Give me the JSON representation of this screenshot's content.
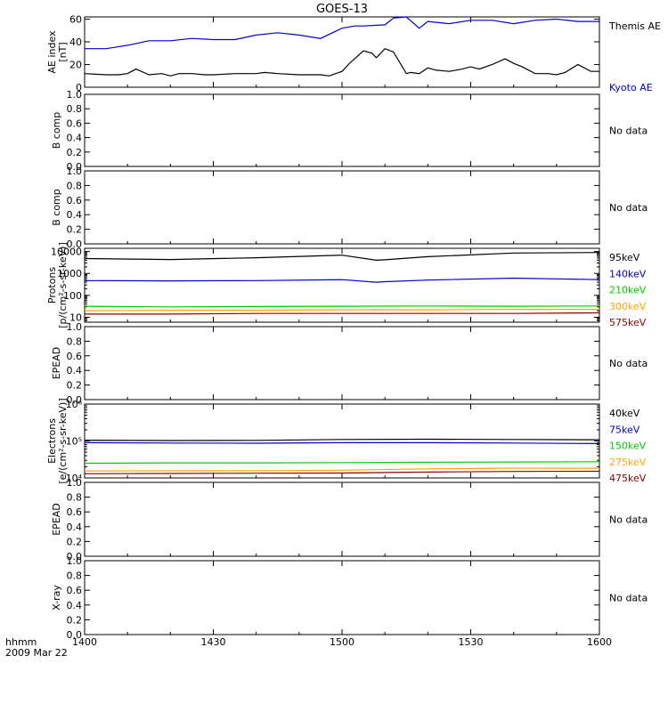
{
  "title": "GOES-13",
  "x_axis": {
    "row1_label": "hhmm",
    "row2_label": "2009 Mar 22",
    "ticks": [
      "1400",
      "1430",
      "1500",
      "1530",
      "1600"
    ],
    "range_minutes": [
      0,
      120
    ]
  },
  "no_data_text": "No data",
  "chart_data": [
    {
      "type": "line",
      "ylabel": "AE index",
      "ylabel2": "[nT]",
      "scale": "linear",
      "ylim": [
        0,
        62
      ],
      "yticks": [
        0,
        20,
        40,
        60
      ],
      "ytick_labels": [
        "0",
        "20",
        "40",
        "60"
      ],
      "series": [
        {
          "name": "Kyoto AE",
          "color": "#0000cc",
          "x": [
            0,
            5,
            10,
            15,
            20,
            25,
            30,
            35,
            40,
            45,
            50,
            55,
            60,
            63,
            65,
            70,
            72,
            75,
            78,
            80,
            85,
            90,
            95,
            100,
            105,
            110,
            115,
            120
          ],
          "y": [
            34,
            34,
            37,
            41,
            41,
            43,
            42,
            42,
            46,
            48,
            46,
            43,
            52,
            54,
            54,
            55,
            61,
            62,
            52,
            58,
            56,
            59,
            59,
            56,
            59,
            60,
            58,
            58
          ]
        },
        {
          "name": "Themis AE",
          "color": "#000000",
          "x": [
            0,
            5,
            8,
            10,
            12,
            15,
            18,
            20,
            22,
            25,
            28,
            30,
            35,
            40,
            42,
            45,
            50,
            55,
            57,
            60,
            62,
            65,
            67,
            68,
            70,
            72,
            75,
            76,
            78,
            80,
            82,
            85,
            88,
            90,
            92,
            95,
            98,
            100,
            102,
            105,
            108,
            110,
            112,
            115,
            118,
            120
          ],
          "y": [
            12,
            11,
            11,
            12,
            16,
            11,
            12,
            10,
            12,
            12,
            11,
            11,
            12,
            12,
            13,
            12,
            11,
            11,
            10,
            14,
            22,
            32,
            30,
            26,
            34,
            31,
            12,
            13,
            12,
            17,
            15,
            14,
            16,
            18,
            16,
            20,
            25,
            21,
            18,
            12,
            12,
            11,
            13,
            20,
            14,
            14
          ]
        }
      ]
    },
    {
      "type": "line",
      "ylabel": "B comp",
      "no_data": true,
      "scale": "linear",
      "ylim": [
        0,
        1
      ],
      "yticks": [
        0,
        0.2,
        0.4,
        0.6,
        0.8,
        1.0
      ],
      "ytick_labels": [
        "0.0",
        "0.2",
        "0.4",
        "0.6",
        "0.8",
        "1.0"
      ]
    },
    {
      "type": "line",
      "ylabel": "B comp",
      "no_data": true,
      "scale": "linear",
      "ylim": [
        0,
        1
      ],
      "yticks": [
        0,
        0.2,
        0.4,
        0.6,
        0.8,
        1.0
      ],
      "ytick_labels": [
        "0.0",
        "0.2",
        "0.4",
        "0.6",
        "0.8",
        "1.0"
      ]
    },
    {
      "type": "line",
      "ylabel": "Protons",
      "ylabel2": "[p/(cm²-s-sr-keV)]",
      "scale": "log",
      "ylim": [
        6,
        14000
      ],
      "yticks": [
        10,
        100,
        1000,
        10000
      ],
      "ytick_labels": [
        "10",
        "100",
        "1000",
        "10000"
      ],
      "series": [
        {
          "name": "575keV",
          "color": "#8b0000",
          "x": [
            0,
            20,
            40,
            60,
            80,
            100,
            120
          ],
          "y": [
            14,
            14,
            15,
            15,
            15,
            15,
            16
          ]
        },
        {
          "name": "300keV",
          "color": "#ffa500",
          "x": [
            0,
            20,
            40,
            60,
            80,
            100,
            120
          ],
          "y": [
            20,
            21,
            21,
            22,
            22,
            23,
            23
          ]
        },
        {
          "name": "210keV",
          "color": "#00cc00",
          "x": [
            0,
            20,
            40,
            60,
            80,
            100,
            120
          ],
          "y": [
            32,
            30,
            31,
            32,
            33,
            32,
            33
          ]
        },
        {
          "name": "140keV",
          "color": "#0000cc",
          "x": [
            0,
            20,
            40,
            60,
            68,
            70,
            80,
            100,
            120
          ],
          "y": [
            470,
            460,
            470,
            520,
            400,
            420,
            500,
            610,
            520
          ]
        },
        {
          "name": "95keV",
          "color": "#000000",
          "x": [
            0,
            20,
            40,
            60,
            68,
            70,
            80,
            100,
            120
          ],
          "y": [
            4800,
            4300,
            5200,
            6800,
            4000,
            4200,
            5800,
            8500,
            9000
          ]
        }
      ]
    },
    {
      "type": "line",
      "ylabel": "EPEAD",
      "no_data": true,
      "scale": "linear",
      "ylim": [
        0,
        1
      ],
      "yticks": [
        0,
        0.2,
        0.4,
        0.6,
        0.8,
        1.0
      ],
      "ytick_labels": [
        "0.0",
        "0.2",
        "0.4",
        "0.6",
        "0.8",
        "1.0"
      ]
    },
    {
      "type": "line",
      "ylabel": "Electrons",
      "ylabel2": "[e/(cm²-s-sr-keV)]",
      "scale": "log",
      "ylim": [
        10000,
        1000000
      ],
      "yticks": [
        10000,
        100000,
        1000000
      ],
      "ytick_labels": [
        "10⁴",
        "10⁵",
        "10⁶"
      ],
      "series": [
        {
          "name": "475keV",
          "color": "#8b0000",
          "x": [
            0,
            20,
            40,
            60,
            80,
            100,
            120
          ],
          "y": [
            13000,
            13200,
            13400,
            13600,
            14400,
            15000,
            15200
          ]
        },
        {
          "name": "275keV",
          "color": "#ffa500",
          "x": [
            0,
            20,
            40,
            60,
            80,
            100,
            120
          ],
          "y": [
            15500,
            15600,
            15800,
            16200,
            17600,
            18400,
            18200
          ]
        },
        {
          "name": "150keV",
          "color": "#00cc00",
          "x": [
            0,
            20,
            40,
            60,
            80,
            100,
            120
          ],
          "y": [
            25000,
            25500,
            25500,
            26000,
            26500,
            27000,
            27500
          ]
        },
        {
          "name": "75keV",
          "color": "#0000cc",
          "x": [
            0,
            20,
            40,
            60,
            80,
            100,
            120
          ],
          "y": [
            90000,
            88000,
            87000,
            90000,
            90000,
            88000,
            85000
          ]
        },
        {
          "name": "40keV",
          "color": "#000000",
          "x": [
            0,
            20,
            40,
            60,
            80,
            100,
            120
          ],
          "y": [
            105000,
            103000,
            104000,
            110000,
            112000,
            110000,
            108000
          ]
        }
      ]
    },
    {
      "type": "line",
      "ylabel": "EPEAD",
      "no_data": true,
      "scale": "linear",
      "ylim": [
        0,
        1
      ],
      "yticks": [
        0,
        0.2,
        0.4,
        0.6,
        0.8,
        1.0
      ],
      "ytick_labels": [
        "0.0",
        "0.2",
        "0.4",
        "0.6",
        "0.8",
        "1.0"
      ]
    },
    {
      "type": "line",
      "ylabel": "X-ray",
      "no_data": true,
      "scale": "linear",
      "ylim": [
        0,
        1
      ],
      "yticks": [
        0,
        0.2,
        0.4,
        0.6,
        0.8,
        1.0
      ],
      "ytick_labels": [
        "0.0",
        "0.2",
        "0.4",
        "0.6",
        "0.8",
        "1.0"
      ]
    }
  ]
}
